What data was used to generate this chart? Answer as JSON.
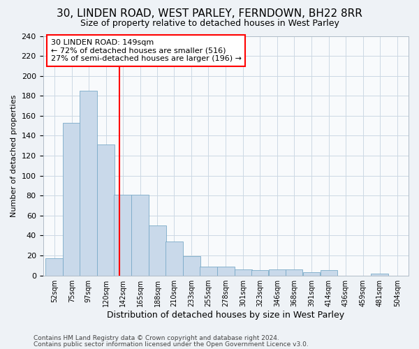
{
  "title1": "30, LINDEN ROAD, WEST PARLEY, FERNDOWN, BH22 8RR",
  "title2": "Size of property relative to detached houses in West Parley",
  "xlabel": "Distribution of detached houses by size in West Parley",
  "ylabel": "Number of detached properties",
  "bar_color": "#c9d9ea",
  "bar_edgecolor": "#7aaac8",
  "redline_x": 149,
  "categories": [
    "52sqm",
    "75sqm",
    "97sqm",
    "120sqm",
    "142sqm",
    "165sqm",
    "188sqm",
    "210sqm",
    "233sqm",
    "255sqm",
    "278sqm",
    "301sqm",
    "323sqm",
    "346sqm",
    "368sqm",
    "391sqm",
    "414sqm",
    "436sqm",
    "459sqm",
    "481sqm",
    "504sqm"
  ],
  "bin_left_edges": [
    52,
    75,
    97,
    120,
    142,
    165,
    188,
    210,
    233,
    255,
    278,
    301,
    323,
    346,
    368,
    391,
    414,
    436,
    459,
    481,
    504
  ],
  "bin_width": 23,
  "values": [
    17,
    153,
    185,
    131,
    81,
    81,
    50,
    34,
    19,
    9,
    9,
    6,
    5,
    6,
    6,
    3,
    5,
    0,
    0,
    2,
    0
  ],
  "annotation_text": "30 LINDEN ROAD: 149sqm\n← 72% of detached houses are smaller (516)\n27% of semi-detached houses are larger (196) →",
  "annotation_box_facecolor": "white",
  "annotation_box_edgecolor": "red",
  "ylim": [
    0,
    240
  ],
  "yticks": [
    0,
    20,
    40,
    60,
    80,
    100,
    120,
    140,
    160,
    180,
    200,
    220,
    240
  ],
  "footer1": "Contains HM Land Registry data © Crown copyright and database right 2024.",
  "footer2": "Contains public sector information licensed under the Open Government Licence v3.0.",
  "bg_color": "#eef2f6",
  "plot_bg_color": "#f8fafc",
  "grid_color": "#ccd8e4",
  "title1_fontsize": 11,
  "title2_fontsize": 9,
  "xlabel_fontsize": 9,
  "ylabel_fontsize": 8,
  "tick_fontsize": 8,
  "annot_fontsize": 8,
  "footer_fontsize": 6.5
}
